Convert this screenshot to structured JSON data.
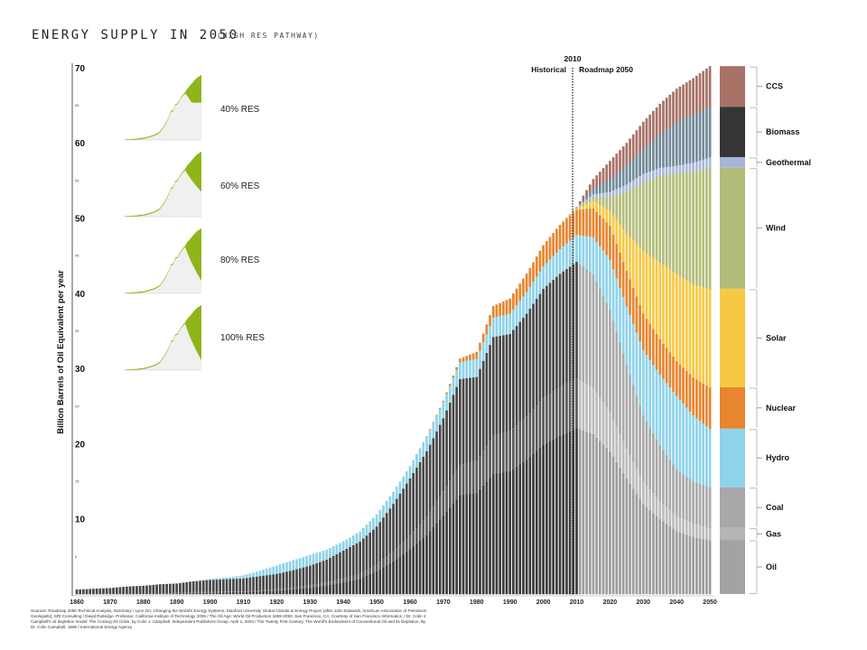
{
  "chart_data": {
    "type": "bar",
    "stacked": true,
    "title": "ENERGY SUPPLY IN 2050",
    "subtitle": "(HIGH RES PATHWAY)",
    "ylabel": "Billion Barrels of Oil Equivalent per year",
    "xlabel": "",
    "ylim": [
      0,
      70
    ],
    "xlim": [
      1860,
      2050
    ],
    "y_major_ticks": [
      "70",
      "60",
      "50",
      "40",
      "30",
      "20",
      "10"
    ],
    "y_minor_ticks": [
      "65",
      "55",
      "45",
      "35",
      "25",
      "15",
      "5"
    ],
    "x_ticks": [
      "1860",
      "1870",
      "1880",
      "1890",
      "1900",
      "1910",
      "1920",
      "1930",
      "1940",
      "1950",
      "1960",
      "1970",
      "1980",
      "1990",
      "2000",
      "2010",
      "2020",
      "2030",
      "2040",
      "2050"
    ],
    "divider": {
      "year": 2010,
      "label": "2010",
      "left_label": "Historical",
      "right_label": "Roadmap 2050"
    },
    "x": [
      1860,
      1865,
      1870,
      1875,
      1880,
      1885,
      1890,
      1895,
      1900,
      1905,
      1910,
      1915,
      1920,
      1925,
      1930,
      1935,
      1940,
      1945,
      1950,
      1955,
      1960,
      1965,
      1970,
      1975,
      1980,
      1985,
      1990,
      1995,
      2000,
      2005,
      2010,
      2015,
      2020,
      2025,
      2030,
      2035,
      2040,
      2045,
      2050
    ],
    "series": [
      {
        "name": "Oil",
        "color": "#3c3c3c",
        "future_color": "#9c9c9c",
        "legend_color": "#a3a3a3",
        "values": [
          0,
          0,
          0.1,
          0.1,
          0.1,
          0.1,
          0.1,
          0.2,
          0.2,
          0.3,
          0.3,
          0.4,
          0.5,
          0.7,
          0.9,
          1.2,
          1.6,
          2.1,
          3.1,
          4.4,
          6.0,
          7.9,
          10.5,
          13.2,
          13.5,
          16.0,
          16.4,
          17.9,
          19.9,
          21.1,
          22.1,
          21.3,
          19.0,
          15.4,
          12.0,
          10.0,
          8.4,
          7.6,
          7.2
        ]
      },
      {
        "name": "Gas",
        "color": "#5a5a5a",
        "future_color": "#bcbcbc",
        "legend_color": "#b5b5b5",
        "values": [
          0,
          0,
          0,
          0,
          0,
          0,
          0.1,
          0.1,
          0.1,
          0.1,
          0.1,
          0.1,
          0.2,
          0.2,
          0.3,
          0.4,
          0.5,
          0.6,
          0.9,
          1.3,
          1.8,
          2.4,
          3.2,
          4.0,
          4.2,
          5.1,
          5.3,
          5.7,
          6.2,
          6.5,
          6.6,
          6.2,
          5.2,
          4.0,
          3.0,
          2.4,
          2.0,
          1.8,
          1.6
        ]
      },
      {
        "name": "Coal",
        "color": "#484848",
        "future_color": "#aaaaaa",
        "legend_color": "#a8a8a8",
        "values": [
          0.6,
          0.7,
          0.7,
          0.9,
          1.0,
          1.2,
          1.2,
          1.4,
          1.6,
          1.6,
          1.7,
          1.9,
          2.0,
          2.3,
          2.6,
          3.0,
          3.7,
          4.3,
          5.0,
          6.3,
          7.6,
          8.7,
          9.7,
          11.4,
          11.2,
          13.1,
          12.9,
          13.7,
          14.5,
          15.0,
          15.5,
          15.0,
          13.6,
          11.1,
          8.8,
          7.4,
          6.2,
          5.6,
          5.4
        ]
      },
      {
        "name": "Hydro",
        "color": "#8fd3ea",
        "future_color": "#8fd3ea",
        "legend_color": "#8fd3ea",
        "values": [
          0,
          0,
          0,
          0,
          0,
          0,
          0,
          0,
          0.1,
          0.2,
          0.4,
          0.7,
          1.1,
          1.3,
          1.4,
          1.3,
          1.2,
          1.3,
          1.6,
          1.6,
          1.6,
          2.0,
          2.2,
          2.3,
          2.4,
          2.6,
          2.7,
          2.9,
          3.0,
          3.3,
          3.6,
          5.0,
          6.7,
          7.8,
          8.7,
          9.4,
          9.8,
          8.8,
          7.8
        ]
      },
      {
        "name": "Nuclear",
        "color": "#e8852e",
        "future_color": "#e8852e",
        "legend_color": "#e8852e",
        "values": [
          0,
          0,
          0,
          0,
          0,
          0,
          0,
          0,
          0,
          0,
          0,
          0,
          0,
          0,
          0,
          0,
          0,
          0,
          0,
          0,
          0,
          0,
          0.1,
          0.4,
          0.9,
          1.5,
          2.0,
          2.4,
          2.8,
          3.2,
          3.3,
          3.8,
          4.5,
          4.7,
          4.8,
          4.7,
          4.6,
          5.0,
          5.5
        ]
      },
      {
        "name": "Solar",
        "color": "#f7c843",
        "future_color": "#f7c843",
        "legend_color": "#f7c843",
        "values": [
          0,
          0,
          0,
          0,
          0,
          0,
          0,
          0,
          0,
          0,
          0,
          0,
          0,
          0,
          0,
          0,
          0,
          0,
          0,
          0,
          0,
          0,
          0,
          0,
          0,
          0,
          0,
          0,
          0,
          0,
          0.2,
          1.0,
          2.0,
          5.0,
          8.4,
          10.2,
          11.6,
          12.4,
          13.1
        ]
      },
      {
        "name": "Wind",
        "color": "#b4bd7a",
        "future_color": "#b4bd7a",
        "legend_color": "#b2bb78",
        "values": [
          0,
          0,
          0,
          0,
          0,
          0,
          0,
          0,
          0,
          0,
          0,
          0,
          0,
          0,
          0,
          0,
          0,
          0,
          0,
          0,
          0,
          0,
          0,
          0,
          0,
          0,
          0,
          0,
          0,
          0,
          0.1,
          0.5,
          1.8,
          5.5,
          9.0,
          11.5,
          13.4,
          15.0,
          16.1
        ]
      },
      {
        "name": "Geothermal",
        "color": "#a9b9db",
        "future_color": "#a9b9db",
        "legend_color": "#a5b5d8",
        "values": [
          0,
          0,
          0,
          0,
          0,
          0,
          0,
          0,
          0,
          0,
          0,
          0,
          0,
          0,
          0,
          0,
          0,
          0,
          0,
          0,
          0,
          0,
          0,
          0,
          0,
          0,
          0,
          0,
          0,
          0,
          0.1,
          0.4,
          0.7,
          1.0,
          1.2,
          1.1,
          1.0,
          1.2,
          1.4
        ]
      },
      {
        "name": "Biomass",
        "color": "#728a99",
        "future_color": "#728a99",
        "legend_color": "#363636",
        "values": [
          0,
          0,
          0,
          0,
          0,
          0,
          0,
          0,
          0,
          0,
          0,
          0,
          0,
          0,
          0,
          0,
          0,
          0,
          0,
          0,
          0,
          0,
          0,
          0,
          0,
          0,
          0,
          0,
          0,
          0,
          0,
          0.8,
          1.7,
          2.5,
          3.3,
          4.5,
          5.8,
          6.4,
          6.7
        ]
      },
      {
        "name": "CCS",
        "color": "#a87266",
        "future_color": "#a87266",
        "legend_color": "#a87266",
        "values": [
          0,
          0,
          0,
          0,
          0,
          0,
          0,
          0,
          0,
          0,
          0,
          0,
          0,
          0,
          0,
          0,
          0,
          0,
          0,
          0,
          0,
          0,
          0,
          0,
          0,
          0,
          0,
          0,
          0,
          0,
          0,
          1.2,
          2.4,
          3.0,
          3.6,
          4.0,
          4.4,
          4.8,
          5.4
        ]
      }
    ],
    "legend": {
      "placement": "right",
      "year": 2050
    },
    "insets": [
      {
        "label": "40% RES",
        "res_share": 0.4,
        "fossil_color": "#f0f0ee",
        "res_color": "#8fb51a"
      },
      {
        "label": "60% RES",
        "res_share": 0.6,
        "fossil_color": "#f0f0ee",
        "res_color": "#8fb51a"
      },
      {
        "label": "80% RES",
        "res_share": 0.8,
        "fossil_color": "#f0f0ee",
        "res_color": "#8fb51a"
      },
      {
        "label": "100% RES",
        "res_share": 1.0,
        "fossil_color": "#f0f0ee",
        "res_color": "#8fb51a"
      }
    ]
  },
  "sources": "Sources: Roadmap 2050 Technical Analysis, McKinsey / Lynn Orr, Changing the World's Energy Systems, Stanford University Global Climate & Energy Project (after John Edwards, American Association of Petroleum Geologists); SRI Consulting / David Rutledge, Professor, California Institute of Technology 2009 / The Oil Age: World Oil Production 1859-2050, San Francisco, CA. Courtesy of San Francisco Informatics. / Dr. Colin J. Campbell's oil depletion model: The Coming Oil Crisis, by Colin J. Campbell. Independent Publishers Group, April 1, 2004 / The Twenty First Century. The World's Endowment of Conventional Oil and its Depletion, By Dr. Colin Campbell, 1996 / International Energy Agency"
}
